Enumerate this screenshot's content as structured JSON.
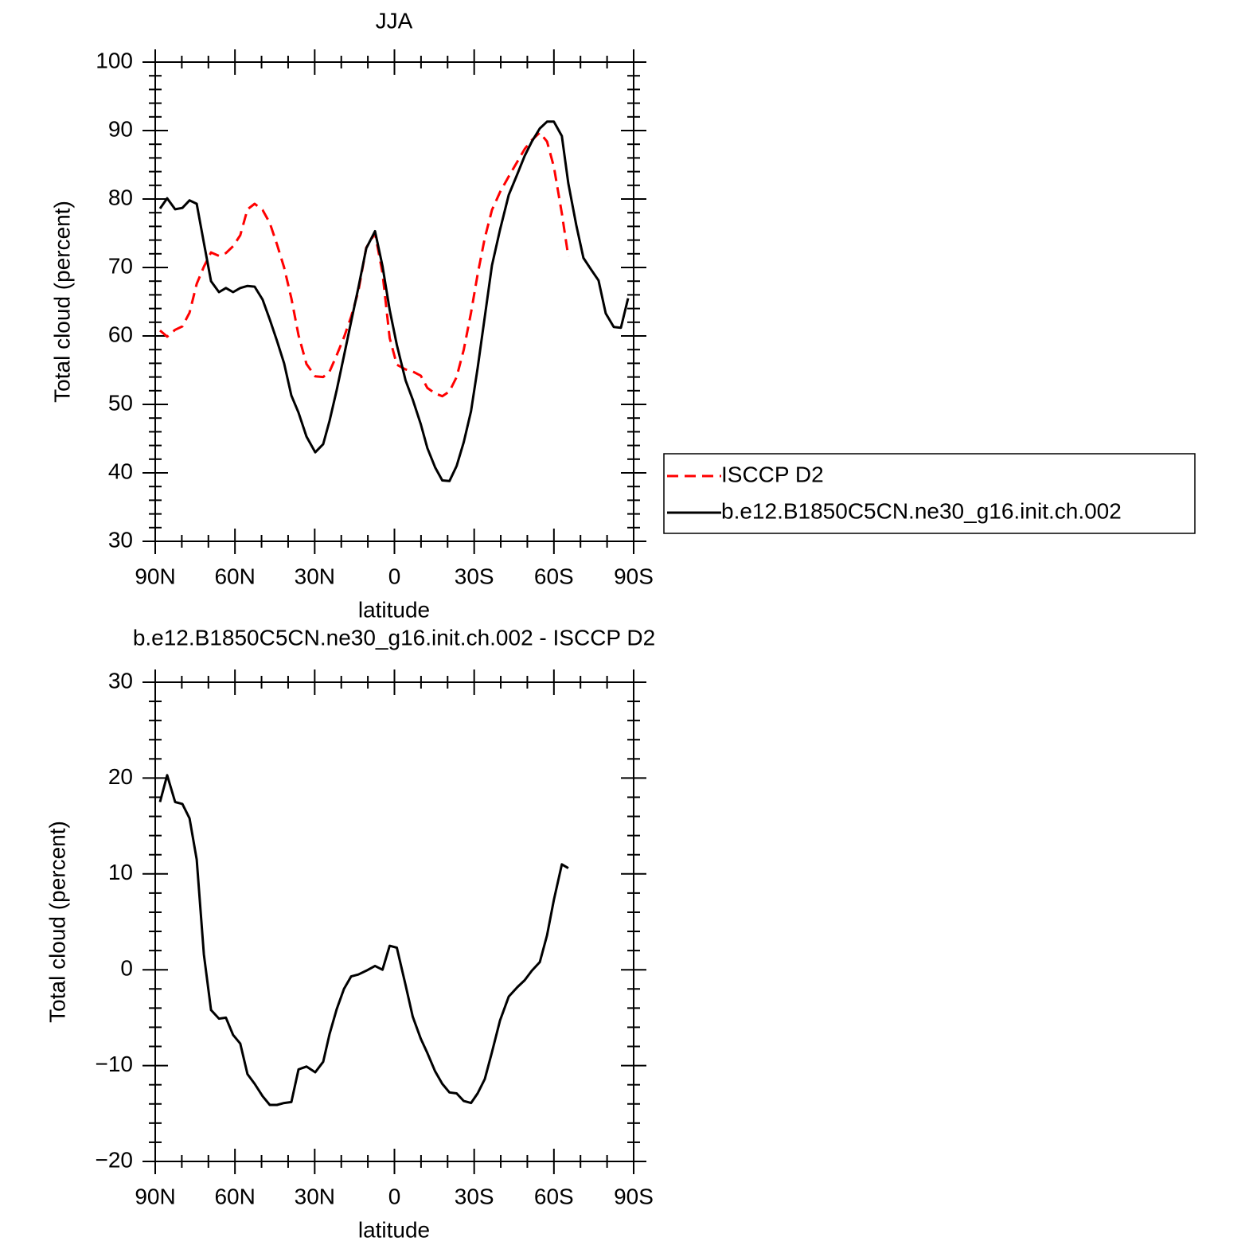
{
  "chart_data": [
    {
      "type": "line",
      "title": "JJA",
      "xlabel": "latitude",
      "ylabel": "Total cloud (percent)",
      "x": [
        88.2,
        85.5,
        82.5,
        79.8,
        77.1,
        74.4,
        71.7,
        69.0,
        66.0,
        63.4,
        60.7,
        58.0,
        55.3,
        52.6,
        49.6,
        46.9,
        44.2,
        41.5,
        38.8,
        36.1,
        33.1,
        29.8,
        26.8,
        24.4,
        21.7,
        19.0,
        16.3,
        13.6,
        10.6,
        7.3,
        4.5,
        1.8,
        -0.9,
        -4.2,
        -6.9,
        -9.9,
        -12.4,
        -15.3,
        -18.0,
        -20.7,
        -23.4,
        -26.1,
        -28.8,
        -31.3,
        -34.0,
        -36.7,
        -39.7,
        -43.0,
        -46.3,
        -49.0,
        -51.7,
        -54.7,
        -57.4,
        -60.0,
        -63.0,
        -65.4,
        -68.4,
        -71.1,
        -73.8,
        -76.8,
        -79.5,
        -82.5,
        -85.2,
        -87.9
      ],
      "series": [
        {
          "name": "ISCCP D2",
          "color": "#ff0000",
          "dash": "dashed",
          "values": [
            60.8,
            59.9,
            60.9,
            61.4,
            63.4,
            67.6,
            70.1,
            72.2,
            71.7,
            72.1,
            73.1,
            74.7,
            78.5,
            79.3,
            78.4,
            76.5,
            73.4,
            70.0,
            65.5,
            60.1,
            55.9,
            54.1,
            54.0,
            54.8,
            57.2,
            59.8,
            62.8,
            66.5,
            72.9,
            75.0,
            69.2,
            59.7,
            55.8,
            55.1,
            54.8,
            54.2,
            52.4,
            51.6,
            51.2,
            51.9,
            54.0,
            58.0,
            63.4,
            69.0,
            74.3,
            78.4,
            81.0,
            83.3,
            85.5,
            87.3,
            88.6,
            89.7,
            88.4,
            84.7,
            77.9,
            71.6,
            null,
            null,
            null,
            null,
            null,
            null,
            null,
            null
          ]
        },
        {
          "name": "b.e12.B1850C5CN.ne30_g16.init.ch.002",
          "color": "#000000",
          "dash": "solid",
          "values": [
            78.6,
            80.1,
            78.5,
            78.7,
            79.8,
            79.3,
            73.6,
            68.0,
            66.4,
            67.0,
            66.4,
            67.0,
            67.3,
            67.2,
            65.3,
            62.4,
            59.3,
            56.0,
            51.3,
            48.8,
            45.3,
            43.0,
            44.2,
            47.6,
            52.1,
            57.1,
            62.1,
            67.0,
            72.8,
            75.3,
            70.2,
            63.8,
            58.7,
            53.5,
            50.7,
            47.1,
            43.6,
            40.8,
            38.9,
            38.8,
            41.0,
            44.5,
            49.0,
            55.3,
            62.8,
            70.3,
            75.5,
            80.6,
            83.7,
            86.3,
            88.4,
            90.3,
            91.3,
            91.3,
            89.2,
            82.3,
            76.2,
            71.4,
            69.8,
            68.1,
            63.3,
            61.3,
            61.2,
            65.5
          ]
        }
      ],
      "xlim": [
        90,
        -90
      ],
      "xticks": [
        {
          "value": 90,
          "label": "90N"
        },
        {
          "value": 60,
          "label": "60N"
        },
        {
          "value": 30,
          "label": "30N"
        },
        0,
        {
          "value": -30,
          "label": "30S"
        },
        {
          "value": -60,
          "label": "60S"
        },
        {
          "value": -90,
          "label": "90S"
        }
      ],
      "xminorticks": [
        80,
        70,
        50,
        40,
        20,
        10,
        -10,
        -20,
        -40,
        -50,
        -70,
        -80
      ],
      "ylim": [
        30,
        100
      ],
      "yticks": [
        30,
        40,
        50,
        60,
        70,
        80,
        90,
        100
      ],
      "yminorticks": [
        32,
        34,
        36,
        38,
        42,
        44,
        46,
        48,
        52,
        54,
        56,
        58,
        62,
        64,
        66,
        68,
        72,
        74,
        76,
        78,
        82,
        84,
        86,
        88,
        92,
        94,
        96,
        98
      ],
      "legend": "right"
    },
    {
      "type": "line",
      "title": "b.e12.B1850C5CN.ne30_g16.init.ch.002 - ISCCP D2",
      "xlabel": "latitude",
      "ylabel": "Total cloud (percent)",
      "x": [
        88.2,
        85.5,
        82.5,
        79.8,
        77.1,
        74.4,
        71.7,
        69.0,
        66.0,
        63.4,
        60.7,
        58.0,
        55.3,
        52.6,
        49.6,
        46.9,
        44.2,
        41.5,
        38.8,
        36.1,
        33.1,
        29.8,
        26.8,
        24.4,
        21.7,
        19.0,
        16.3,
        13.6,
        10.6,
        7.3,
        4.5,
        1.8,
        -0.9,
        -4.2,
        -6.9,
        -9.9,
        -12.4,
        -15.3,
        -18.0,
        -20.7,
        -23.4,
        -26.1,
        -28.8,
        -31.3,
        -34.0,
        -36.7,
        -39.7,
        -43.0,
        -46.3,
        -49.0,
        -51.7,
        -54.7,
        -57.4,
        -60.0,
        -63.0,
        -65.4
      ],
      "values": [
        17.5,
        20.3,
        17.5,
        17.3,
        15.8,
        11.5,
        1.6,
        -4.2,
        -5.1,
        -5.0,
        -6.8,
        -7.7,
        -10.9,
        -11.9,
        -13.2,
        -14.1,
        -14.1,
        -13.9,
        -13.8,
        -10.4,
        -10.1,
        -10.7,
        -9.6,
        -6.7,
        -4.1,
        -2.0,
        -0.7,
        -0.5,
        -0.1,
        0.4,
        0.0,
        2.5,
        2.3,
        -1.6,
        -4.9,
        -7.2,
        -8.7,
        -10.6,
        -11.9,
        -12.8,
        -12.9,
        -13.7,
        -13.9,
        -12.9,
        -11.4,
        -8.6,
        -5.3,
        -2.8,
        -1.8,
        -1.1,
        -0.1,
        0.8,
        3.6,
        7.3,
        11.0,
        10.6
      ],
      "color": "#000000",
      "xlim": [
        90,
        -90
      ],
      "xticks": [
        {
          "value": 90,
          "label": "90N"
        },
        {
          "value": 60,
          "label": "60N"
        },
        {
          "value": 30,
          "label": "30N"
        },
        0,
        {
          "value": -30,
          "label": "30S"
        },
        {
          "value": -60,
          "label": "60S"
        },
        {
          "value": -90,
          "label": "90S"
        }
      ],
      "xminorticks": [
        80,
        70,
        50,
        40,
        20,
        10,
        -10,
        -20,
        -40,
        -50,
        -70,
        -80
      ],
      "ylim": [
        -20,
        30
      ],
      "yticks": [
        {
          "value": -20,
          "label": "−20"
        },
        {
          "value": -10,
          "label": "−10"
        },
        0,
        10,
        20,
        30
      ],
      "yminorticks": [
        -18,
        -16,
        -14,
        -12,
        -8,
        -6,
        -4,
        -2,
        2,
        4,
        6,
        8,
        12,
        14,
        16,
        18,
        22,
        24,
        26,
        28
      ]
    }
  ]
}
